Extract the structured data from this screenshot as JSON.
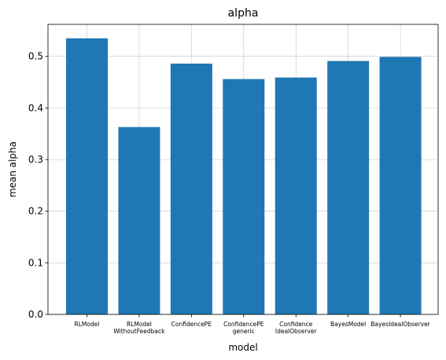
{
  "chart_data": {
    "type": "bar",
    "title": "alpha",
    "xlabel": "model",
    "ylabel": "mean alpha",
    "categories": [
      "RLModel",
      "RLModel\nWithoutFeedback",
      "ConfidencePE",
      "ConfidencePE\ngeneric",
      "Confidence\nIdealObserver",
      "BayesModel",
      "BayesIdealObserver"
    ],
    "values": [
      0.535,
      0.363,
      0.486,
      0.456,
      0.459,
      0.491,
      0.499
    ],
    "ylim": [
      0,
      0.562
    ],
    "yticks": [
      "0.0",
      "0.1",
      "0.2",
      "0.3",
      "0.4",
      "0.5"
    ],
    "grid": true,
    "bar_color": "#1f77b4"
  }
}
